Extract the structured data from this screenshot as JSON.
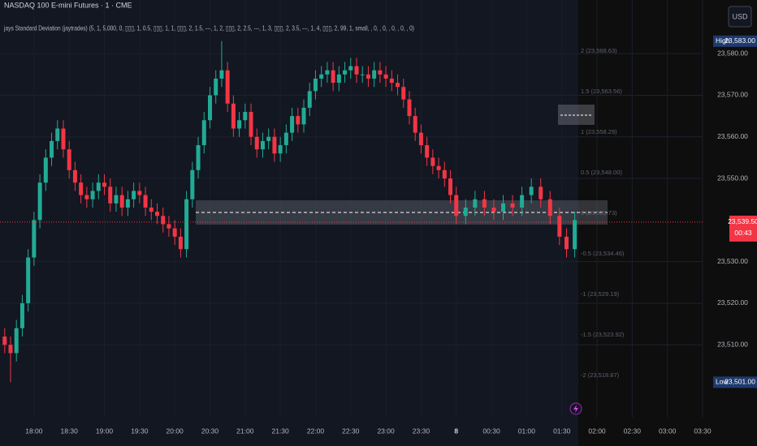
{
  "chart_data": {
    "type": "candlestick",
    "title": "NASDAQ 100 E-mini Futures · 1 · CME",
    "subtitle": "jays Standard Deviation (jaytrades) (5, 1, 5,000, 0, ▯▯▯, 1, 0.5, ▯▯▯, 1, 1, ▯▯▯, 2, 1.5, ---, 1, 2, ▯▯▯, 2, 2.5, ---, 1, 3, ▯▯▯, 2, 3.5, ---, 1, 4, ▯▯▯, 2, 99, 1, small, , 0, , 0, , 0, , 0, , 0)",
    "currency": "USD",
    "x": [
      -25,
      -20,
      -15,
      -10,
      -5,
      0,
      5,
      10,
      15,
      20,
      25,
      30,
      35,
      40,
      45,
      50,
      55,
      60,
      65,
      70,
      75,
      80,
      85,
      90,
      95,
      100,
      105,
      110,
      115,
      120,
      125,
      130,
      135,
      140,
      145,
      150,
      155,
      160,
      165,
      170,
      175,
      180,
      185,
      190,
      195,
      200,
      205,
      210,
      215,
      220,
      225,
      230,
      235,
      240,
      245,
      250,
      255,
      260,
      265,
      270,
      275,
      280,
      285,
      290,
      295,
      300,
      305,
      310,
      315,
      320,
      325,
      330,
      335,
      340,
      345,
      350,
      355,
      360,
      368,
      376,
      384,
      392,
      400,
      408,
      416,
      424,
      432,
      440,
      448,
      454,
      461
    ],
    "open": [
      23512,
      23510,
      23508,
      23514,
      23520,
      23531,
      23540,
      23549,
      23555,
      23559,
      23562,
      23557,
      23552,
      23549,
      23546,
      23545,
      23547,
      23549,
      23548,
      23544,
      23546,
      23543,
      23545,
      23547,
      23546,
      23543,
      23542,
      23541,
      23539,
      23538,
      23536,
      23533,
      23545,
      23552,
      23558,
      23564,
      23570,
      23574,
      23576,
      23568,
      23562,
      23564,
      23566,
      23560,
      23557,
      23559,
      23560,
      23556,
      23558,
      23561,
      23565,
      23563,
      23567,
      23571,
      23574,
      23575,
      23576,
      23573,
      23575,
      23576,
      23577,
      23575,
      23575,
      23574,
      23576,
      23575,
      23574,
      23573,
      23572,
      23569,
      23565,
      23561,
      23558,
      23555,
      23553,
      23552,
      23550,
      23546,
      23541,
      23543,
      23545,
      23543,
      23542,
      23544,
      23543,
      23546,
      23548,
      23545,
      23541,
      23536,
      23533
    ],
    "high": [
      23514,
      23512,
      23516,
      23522,
      23533,
      23542,
      23551,
      23557,
      23561,
      23564,
      23564,
      23559,
      23554,
      23551,
      23548,
      23549,
      23551,
      23551,
      23550,
      23548,
      23548,
      23547,
      23549,
      23549,
      23548,
      23545,
      23544,
      23543,
      23541,
      23540,
      23538,
      23547,
      23554,
      23560,
      23566,
      23572,
      23576,
      23583,
      23578,
      23570,
      23566,
      23568,
      23568,
      23562,
      23561,
      23562,
      23562,
      23560,
      23563,
      23567,
      23567,
      23569,
      23573,
      23576,
      23577,
      23578,
      23578,
      23577,
      23578,
      23579,
      23579,
      23577,
      23577,
      23578,
      23578,
      23577,
      23576,
      23575,
      23574,
      23571,
      23567,
      23563,
      23560,
      23557,
      23555,
      23554,
      23552,
      23548,
      23545,
      23547,
      23547,
      23545,
      23546,
      23546,
      23548,
      23550,
      23550,
      23547,
      23543,
      23538,
      23542
    ],
    "low": [
      23508,
      23501,
      23506,
      23512,
      23518,
      23529,
      23538,
      23547,
      23553,
      23557,
      23555,
      23550,
      23547,
      23544,
      23543,
      23543,
      23545,
      23546,
      23542,
      23542,
      23541,
      23541,
      23543,
      23544,
      23541,
      23540,
      23539,
      23537,
      23536,
      23534,
      23531,
      23531,
      23543,
      23550,
      23556,
      23562,
      23568,
      23572,
      23566,
      23560,
      23560,
      23562,
      23558,
      23555,
      23555,
      23557,
      23554,
      23554,
      23556,
      23559,
      23561,
      23561,
      23565,
      23569,
      23572,
      23573,
      23571,
      23571,
      23573,
      23574,
      23573,
      23573,
      23572,
      23572,
      23573,
      23572,
      23571,
      23570,
      23567,
      23563,
      23559,
      23556,
      23553,
      23551,
      23550,
      23548,
      23544,
      23539,
      23539,
      23541,
      23541,
      23540,
      23540,
      23541,
      23541,
      23544,
      23543,
      23539,
      23534,
      23531,
      23531
    ],
    "close": [
      23510,
      23508,
      23514,
      23520,
      23531,
      23540,
      23549,
      23555,
      23559,
      23562,
      23557,
      23552,
      23549,
      23546,
      23545,
      23547,
      23549,
      23548,
      23544,
      23546,
      23543,
      23545,
      23547,
      23546,
      23543,
      23542,
      23541,
      23539,
      23538,
      23536,
      23533,
      23545,
      23552,
      23558,
      23564,
      23570,
      23574,
      23576,
      23568,
      23562,
      23564,
      23566,
      23560,
      23557,
      23559,
      23560,
      23556,
      23558,
      23561,
      23565,
      23563,
      23567,
      23571,
      23574,
      23575,
      23576,
      23573,
      23575,
      23576,
      23577,
      23575,
      23575,
      23574,
      23576,
      23575,
      23574,
      23573,
      23572,
      23569,
      23565,
      23561,
      23558,
      23555,
      23553,
      23552,
      23550,
      23546,
      23541,
      23543,
      23545,
      23543,
      23542,
      23544,
      23543,
      23546,
      23548,
      23545,
      23541,
      23536,
      23533,
      23540
    ],
    "up_color": "#22ab94",
    "down_color": "#f23645",
    "xlim": [
      -29,
      570
    ],
    "xticks": [
      {
        "value": 0,
        "label": "18:00"
      },
      {
        "value": 30,
        "label": "18:30"
      },
      {
        "value": 60,
        "label": "19:00"
      },
      {
        "value": 90,
        "label": "19:30"
      },
      {
        "value": 120,
        "label": "20:00"
      },
      {
        "value": 150,
        "label": "20:30"
      },
      {
        "value": 180,
        "label": "21:00"
      },
      {
        "value": 210,
        "label": "21:30"
      },
      {
        "value": 240,
        "label": "22:00"
      },
      {
        "value": 270,
        "label": "22:30"
      },
      {
        "value": 300,
        "label": "23:00"
      },
      {
        "value": 330,
        "label": "23:30"
      },
      {
        "value": 360,
        "label": "8"
      },
      {
        "value": 390,
        "label": "00:30"
      },
      {
        "value": 420,
        "label": "01:00"
      },
      {
        "value": 450,
        "label": "01:30"
      },
      {
        "value": 480,
        "label": "02:00"
      },
      {
        "value": 510,
        "label": "02:30"
      },
      {
        "value": 540,
        "label": "03:00"
      },
      {
        "value": 570,
        "label": "03:30"
      }
    ],
    "ylim": [
      23492.5,
      23592.9
    ],
    "yticks": [
      {
        "value": 23510,
        "label": "23,510.00"
      },
      {
        "value": 23520,
        "label": "23,520.00"
      },
      {
        "value": 23530,
        "label": "23,530.00"
      },
      {
        "value": 23550,
        "label": "23,550.00"
      },
      {
        "value": 23560,
        "label": "23,560.00"
      },
      {
        "value": 23570,
        "label": "23,570.00"
      },
      {
        "value": 23580,
        "label": "23,580.00"
      }
    ],
    "grid": true,
    "last_price": {
      "value": 23539.5,
      "label": "23,539.50"
    },
    "countdown": "00:43",
    "high_marker": {
      "name": "High",
      "value": 23583,
      "label": "23,583.00"
    },
    "low_marker": {
      "name": "Low",
      "value": 23501,
      "label": "23,501.00"
    },
    "annotations": [
      "2 (23,568.63)",
      "1.5 (23,563.56)",
      "1 (23,558.29)",
      "0.5 (23,548.00)",
      "0 (23,539.73)",
      "-0.5 (23,534.46)",
      "-1 (23,529.19)",
      "-1.5 (23,523.92)",
      "-2 (23,518.67)"
    ]
  }
}
